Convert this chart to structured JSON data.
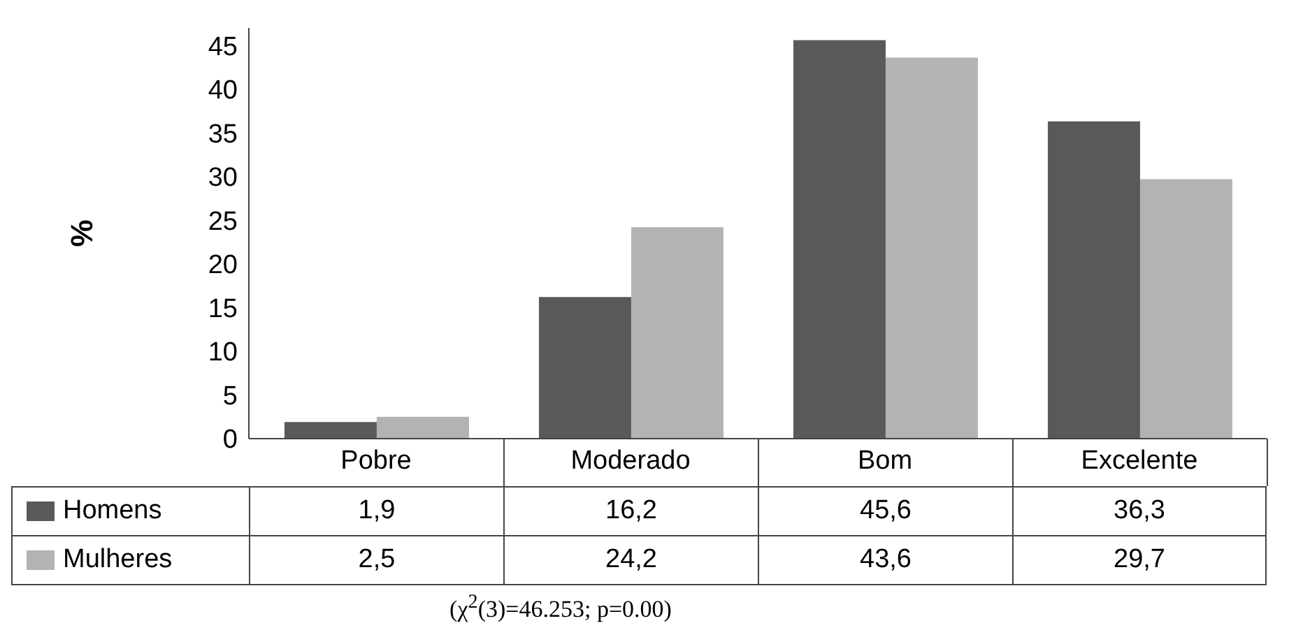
{
  "chart_data": {
    "type": "bar",
    "ylabel": "%",
    "categories": [
      "Pobre",
      "Moderado",
      "Bom",
      "Excelente"
    ],
    "series": [
      {
        "name": "Homens",
        "color": "#595959",
        "values": [
          1.9,
          16.2,
          45.6,
          36.3
        ],
        "value_labels": [
          "1,9",
          "16,2",
          "45,6",
          "36,3"
        ]
      },
      {
        "name": "Mulheres",
        "color": "#b3b3b3",
        "values": [
          2.5,
          24.2,
          43.6,
          29.7
        ],
        "value_labels": [
          "2,5",
          "24,2",
          "43,6",
          "29,7"
        ]
      }
    ],
    "ylim": [
      0,
      47
    ],
    "yticks": [
      0,
      5,
      10,
      15,
      20,
      25,
      30,
      35,
      40,
      45
    ],
    "legend": "bottom left",
    "annotations": [
      "(χ$^{2}$(3)=46.253; p=0.00)"
    ]
  }
}
